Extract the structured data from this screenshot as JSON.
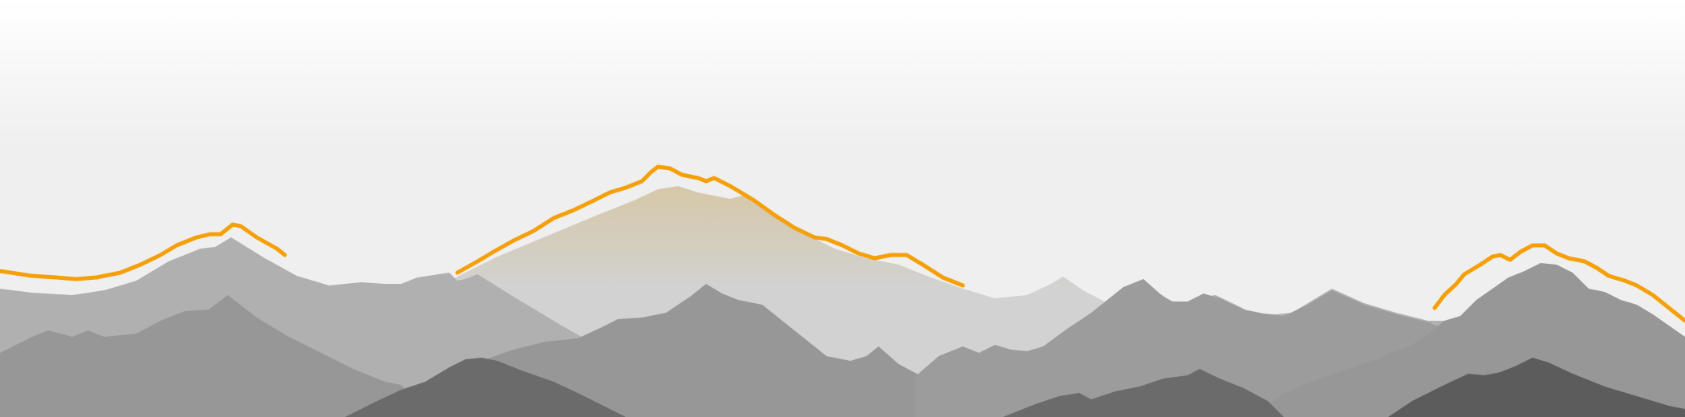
{
  "scene": {
    "sky_top": "#ffffff",
    "sky_bottom": "#efefef",
    "far_ridge_color": "#d2d2d2",
    "central_peak_glow": "#d6c8a8",
    "mid_ridge_color": "#b0b0b0",
    "near_ridge_color": "#979797",
    "front_ridge_color": "#6b6b6b",
    "highlight_outline_color": "#f5a00a"
  }
}
